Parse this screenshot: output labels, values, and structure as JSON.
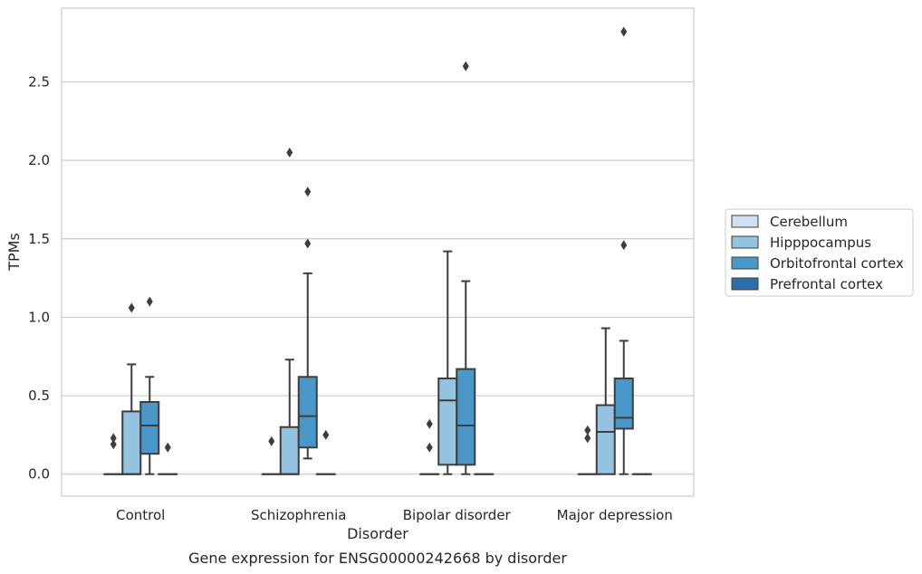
{
  "chart_data": {
    "type": "box",
    "title": "",
    "caption": "Gene expression for ENSG00000242668 by disorder",
    "xlabel": "Disorder",
    "ylabel": "TPMs",
    "ylim": [
      -0.14,
      2.97
    ],
    "yticks": [
      "0.0",
      "0.5",
      "1.0",
      "1.5",
      "2.0",
      "2.5"
    ],
    "grid": true,
    "legend_position": "right",
    "categories": [
      "Control",
      "Schizophrenia",
      "Bipolar disorder",
      "Major depression"
    ],
    "series": [
      {
        "name": "Cerebellum",
        "color": "#d0e1f2",
        "boxes": [
          {
            "q1": 0,
            "median": 0,
            "q3": 0,
            "whisker_low": 0,
            "whisker_high": 0,
            "outliers": [
              0.19,
              0.23
            ]
          },
          {
            "q1": 0,
            "median": 0,
            "q3": 0,
            "whisker_low": 0,
            "whisker_high": 0,
            "outliers": [
              0.21
            ]
          },
          {
            "q1": 0,
            "median": 0,
            "q3": 0,
            "whisker_low": 0,
            "whisker_high": 0,
            "outliers": [
              0.17,
              0.32
            ]
          },
          {
            "q1": 0,
            "median": 0,
            "q3": 0,
            "whisker_low": 0,
            "whisker_high": 0,
            "outliers": [
              0.23,
              0.28
            ]
          }
        ]
      },
      {
        "name": "Hipppocampus",
        "color": "#94c4df",
        "boxes": [
          {
            "q1": 0,
            "median": 0,
            "q3": 0.4,
            "whisker_low": 0,
            "whisker_high": 0.7,
            "outliers": [
              1.06
            ]
          },
          {
            "q1": 0,
            "median": 0,
            "q3": 0.3,
            "whisker_low": 0,
            "whisker_high": 0.73,
            "outliers": [
              2.05
            ]
          },
          {
            "q1": 0.06,
            "median": 0.47,
            "q3": 0.61,
            "whisker_low": 0,
            "whisker_high": 1.42,
            "outliers": []
          },
          {
            "q1": 0,
            "median": 0.27,
            "q3": 0.44,
            "whisker_low": 0,
            "whisker_high": 0.93,
            "outliers": []
          }
        ]
      },
      {
        "name": "Orbitofrontal cortex",
        "color": "#4a98c9",
        "boxes": [
          {
            "q1": 0.13,
            "median": 0.31,
            "q3": 0.46,
            "whisker_low": 0,
            "whisker_high": 0.62,
            "outliers": [
              1.1
            ]
          },
          {
            "q1": 0.17,
            "median": 0.37,
            "q3": 0.62,
            "whisker_low": 0.1,
            "whisker_high": 1.28,
            "outliers": [
              1.47,
              1.8
            ]
          },
          {
            "q1": 0.06,
            "median": 0.31,
            "q3": 0.67,
            "whisker_low": 0,
            "whisker_high": 1.23,
            "outliers": [
              2.6
            ]
          },
          {
            "q1": 0.29,
            "median": 0.36,
            "q3": 0.61,
            "whisker_low": 0,
            "whisker_high": 0.85,
            "outliers": [
              1.46,
              2.82
            ]
          }
        ]
      },
      {
        "name": "Prefrontal cortex",
        "color": "#2e6ea8",
        "boxes": [
          {
            "q1": 0,
            "median": 0,
            "q3": 0,
            "whisker_low": 0,
            "whisker_high": 0,
            "outliers": [
              0.17
            ]
          },
          {
            "q1": 0,
            "median": 0,
            "q3": 0,
            "whisker_low": 0,
            "whisker_high": 0,
            "outliers": [
              0.25
            ]
          },
          {
            "q1": 0,
            "median": 0,
            "q3": 0,
            "whisker_low": 0,
            "whisker_high": 0,
            "outliers": []
          },
          {
            "q1": 0,
            "median": 0,
            "q3": 0,
            "whisker_low": 0,
            "whisker_high": 0,
            "outliers": []
          }
        ]
      }
    ]
  }
}
